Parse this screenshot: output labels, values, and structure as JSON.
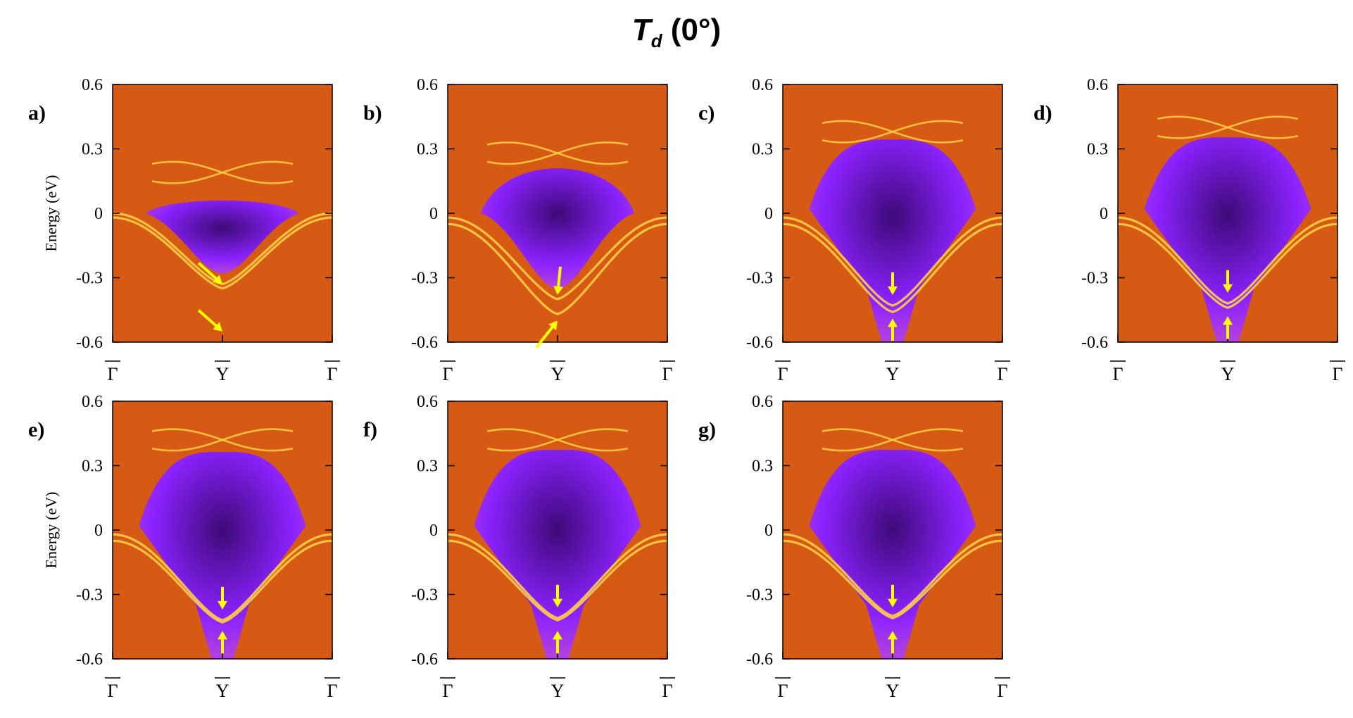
{
  "figure": {
    "title_symbol": "T",
    "title_subscript": "d",
    "title_suffix": " (0°)"
  },
  "colors": {
    "background_orange": "#d65a14",
    "gap_violet": "#8b22ff",
    "gap_dark": "#3e0a78",
    "band_yellow": "#ffcf45",
    "arrow_yellow": "#ffff00"
  },
  "chart_data": [
    {
      "panel_label": "a)",
      "type": "heatmap",
      "ylabel": "Energy (eV)",
      "ylim": [
        -0.6,
        0.6
      ],
      "yticks": [
        "0.6",
        "0.3",
        "0",
        "-0.3",
        "-0.6"
      ],
      "xticks": [
        "Γ",
        "Y",
        "Γ"
      ],
      "gap_top_eV": 0.08,
      "surface_state_minima_eV": [
        -0.33,
        -0.35
      ],
      "upper_crossing_eV": 0.19,
      "arrow_markers_eV": [
        -0.33,
        -0.55
      ]
    },
    {
      "panel_label": "b)",
      "type": "heatmap",
      "ylabel": "",
      "ylim": [
        -0.6,
        0.6
      ],
      "yticks": [
        "0.6",
        "0.3",
        "0",
        "-0.3",
        "-0.6"
      ],
      "xticks": [
        "Γ",
        "Y",
        "Γ"
      ],
      "gap_top_eV": 0.28,
      "surface_state_minima_eV": [
        -0.4,
        -0.47
      ],
      "upper_crossing_eV": 0.28,
      "arrow_markers_eV": [
        -0.38,
        -0.5
      ]
    },
    {
      "panel_label": "c)",
      "type": "heatmap",
      "ylabel": "",
      "ylim": [
        -0.6,
        0.6
      ],
      "yticks": [
        "0.6",
        "0.3",
        "0",
        "-0.3",
        "-0.6"
      ],
      "xticks": [
        "Γ",
        "Y",
        "Γ"
      ],
      "gap_top_eV": 0.33,
      "surface_state_minima_eV": [
        -0.43,
        -0.46
      ],
      "upper_crossing_eV": 0.38,
      "arrow_markers_eV": [
        -0.38,
        -0.49
      ]
    },
    {
      "panel_label": "d)",
      "type": "heatmap",
      "ylabel": "",
      "ylim": [
        -0.6,
        0.6
      ],
      "yticks": [
        "0.6",
        "0.3",
        "0",
        "-0.3",
        "-0.6"
      ],
      "xticks": [
        "Γ",
        "Y",
        "Γ"
      ],
      "gap_top_eV": 0.34,
      "surface_state_minima_eV": [
        -0.42,
        -0.44
      ],
      "upper_crossing_eV": 0.4,
      "arrow_markers_eV": [
        -0.37,
        -0.48
      ]
    },
    {
      "panel_label": "e)",
      "type": "heatmap",
      "ylabel": "Energy (eV)",
      "ylim": [
        -0.6,
        0.6
      ],
      "yticks": [
        "0.6",
        "0.3",
        "0",
        "-0.3",
        "-0.6"
      ],
      "xticks": [
        "Γ",
        "Y",
        "Γ"
      ],
      "gap_top_eV": 0.35,
      "surface_state_minima_eV": [
        -0.42,
        -0.43
      ],
      "upper_crossing_eV": 0.42,
      "arrow_markers_eV": [
        -0.37,
        -0.47
      ]
    },
    {
      "panel_label": "f)",
      "type": "heatmap",
      "ylabel": "",
      "ylim": [
        -0.6,
        0.6
      ],
      "yticks": [
        "0.6",
        "0.3",
        "0",
        "-0.3",
        "-0.6"
      ],
      "xticks": [
        "Γ",
        "Y",
        "Γ"
      ],
      "gap_top_eV": 0.36,
      "surface_state_minima_eV": [
        -0.41,
        -0.42
      ],
      "upper_crossing_eV": 0.42,
      "arrow_markers_eV": [
        -0.36,
        -0.47
      ]
    },
    {
      "panel_label": "g)",
      "type": "heatmap",
      "ylabel": "",
      "ylim": [
        -0.6,
        0.6
      ],
      "yticks": [
        "0.6",
        "0.3",
        "0",
        "-0.3",
        "-0.6"
      ],
      "xticks": [
        "Γ",
        "Y",
        "Γ"
      ],
      "gap_top_eV": 0.36,
      "surface_state_minima_eV": [
        -0.4,
        -0.41
      ],
      "upper_crossing_eV": 0.42,
      "arrow_markers_eV": [
        -0.36,
        -0.47
      ]
    }
  ]
}
